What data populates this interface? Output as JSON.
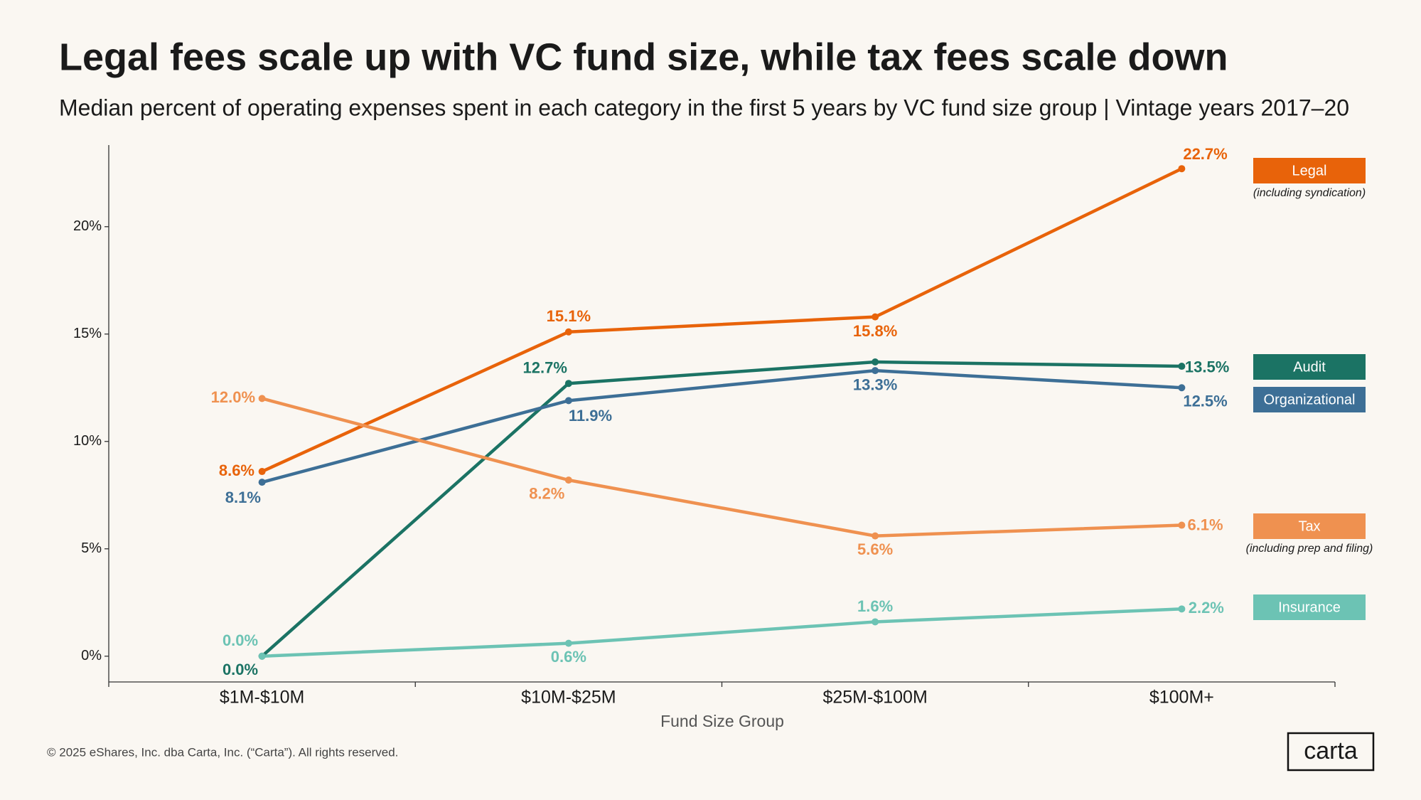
{
  "chart_data": {
    "type": "line",
    "title": "Legal fees scale up with VC fund size, while tax fees scale down",
    "subtitle": "Median percent of operating expenses spent in each category in the first 5 years by VC fund size group | Vintage years 2017–20",
    "x_label": "Fund Size Group",
    "categories": [
      "$1M-$10M",
      "$10M-$25M",
      "$25M-$100M",
      "$100M+"
    ],
    "ylim": [
      -1.2,
      23.8
    ],
    "yticks": [
      {
        "value": 0,
        "label": "0%"
      },
      {
        "value": 5,
        "label": "5%"
      },
      {
        "value": 10,
        "label": "10%"
      },
      {
        "value": 15,
        "label": "15%"
      },
      {
        "value": 20,
        "label": "20%"
      }
    ],
    "grid": false,
    "legend": "right",
    "series": [
      {
        "name": "Legal",
        "note": "(including syndication)",
        "color": "#e8630a",
        "values": [
          8.6,
          15.1,
          15.8,
          22.7
        ],
        "value_labels": [
          "8.6%",
          "15.1%",
          "15.8%",
          "22.7%"
        ]
      },
      {
        "name": "Audit",
        "color": "#1b7364",
        "values": [
          0.0,
          12.7,
          13.7,
          13.5
        ],
        "value_labels": [
          "0.0%",
          "12.7%",
          null,
          "13.5%"
        ]
      },
      {
        "name": "Organizational",
        "color": "#3d6f96",
        "values": [
          8.1,
          11.9,
          13.3,
          12.5
        ],
        "value_labels": [
          "8.1%",
          "11.9%",
          "13.3%",
          "12.5%"
        ]
      },
      {
        "name": "Tax",
        "note": "(including prep and filing)",
        "color": "#ef9150",
        "values": [
          12.0,
          8.2,
          5.6,
          6.1
        ],
        "value_labels": [
          "12.0%",
          "8.2%",
          "5.6%",
          "6.1%"
        ]
      },
      {
        "name": "Insurance",
        "color": "#6cc3b4",
        "values": [
          0.0,
          0.6,
          1.6,
          2.2
        ],
        "value_labels": [
          "0.0%",
          "0.6%",
          "1.6%",
          "2.2%"
        ]
      }
    ]
  },
  "footer": "© 2025 eShares, Inc. dba Carta, Inc. (“Carta”). All rights reserved.",
  "logo": "carta"
}
